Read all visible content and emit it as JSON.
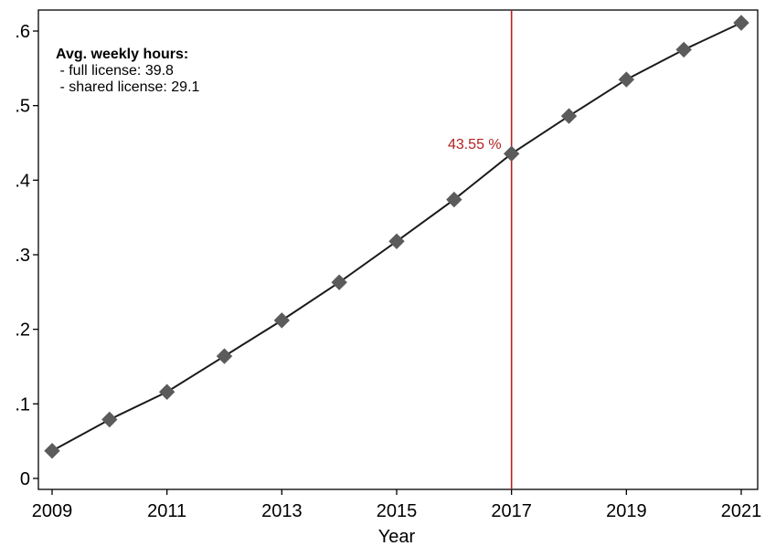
{
  "chart_data": {
    "type": "line",
    "title": "",
    "xlabel": "Year",
    "ylabel": "",
    "x": [
      2009,
      2010,
      2011,
      2012,
      2013,
      2014,
      2015,
      2016,
      2017,
      2018,
      2019,
      2020,
      2021
    ],
    "series": [
      {
        "values": [
          0.037,
          0.079,
          0.116,
          0.164,
          0.212,
          0.263,
          0.318,
          0.374,
          0.4355,
          0.486,
          0.535,
          0.575,
          0.611
        ],
        "color": "#1a1a1a",
        "marker": "diamond",
        "marker_color": "#5b5b5b"
      }
    ],
    "xlim": [
      2009,
      2021
    ],
    "ylim": [
      0,
      0.6
    ],
    "xticks": [
      2009,
      2011,
      2013,
      2015,
      2017,
      2019,
      2021
    ],
    "xtick_labels": [
      "2009",
      "2011",
      "2013",
      "2015",
      "2017",
      "2019",
      "2021"
    ],
    "yticks": [
      0,
      0.1,
      0.2,
      0.3,
      0.4,
      0.5,
      0.6
    ],
    "ytick_labels": [
      "0",
      ".1",
      ".2",
      ".3",
      ".4",
      ".5",
      ".6"
    ],
    "grid": false,
    "vline": {
      "x": 2017,
      "color": "#b22222",
      "label": "43.55 %"
    },
    "annotation": {
      "title": "Avg. weekly hours:",
      "lines": [
        " - full license: 39.8",
        " - shared license: 29.1"
      ]
    }
  }
}
